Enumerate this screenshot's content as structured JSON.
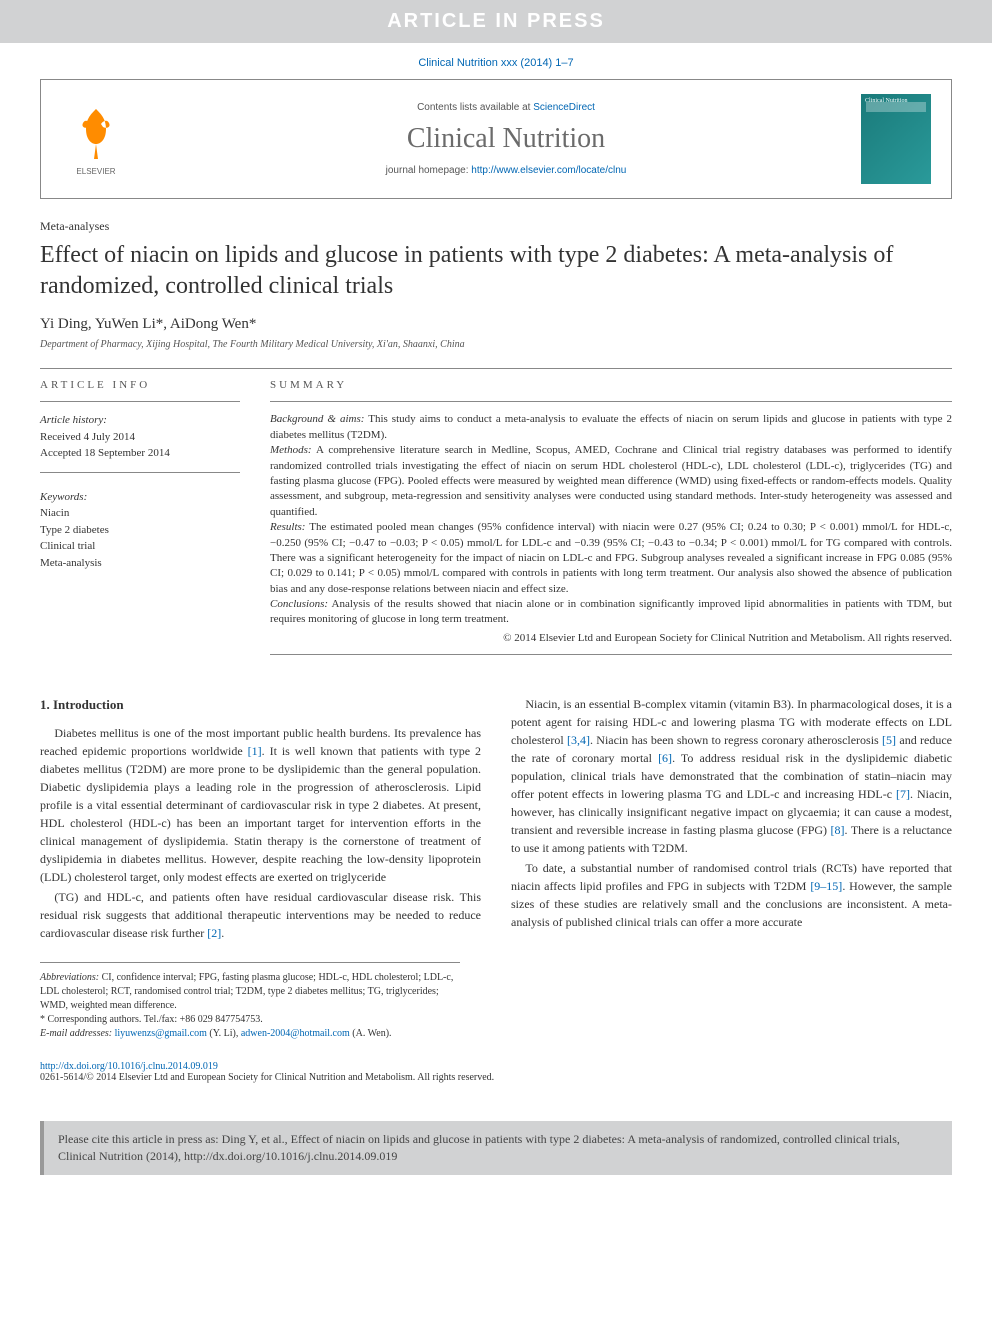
{
  "banner": "ARTICLE IN PRESS",
  "reference": "Clinical Nutrition xxx (2014) 1–7",
  "header": {
    "contents_prefix": "Contents lists available at ",
    "contents_link": "ScienceDirect",
    "journal": "Clinical Nutrition",
    "homepage_prefix": "journal homepage: ",
    "homepage_link": "http://www.elsevier.com/locate/clnu",
    "cover_label": "Clinical Nutrition"
  },
  "article": {
    "type": "Meta-analyses",
    "title": "Effect of niacin on lipids and glucose in patients with type 2 diabetes: A meta-analysis of randomized, controlled clinical trials",
    "authors_html": "Yi Ding, YuWen Li*, AiDong Wen*",
    "affiliation": "Department of Pharmacy, Xijing Hospital, The Fourth Military Medical University, Xi'an, Shaanxi, China"
  },
  "info": {
    "heading": "ARTICLE INFO",
    "history_label": "Article history:",
    "received": "Received 4 July 2014",
    "accepted": "Accepted 18 September 2014",
    "keywords_label": "Keywords:",
    "keywords": [
      "Niacin",
      "Type 2 diabetes",
      "Clinical trial",
      "Meta-analysis"
    ]
  },
  "summary": {
    "heading": "SUMMARY",
    "background_label": "Background & aims:",
    "background": "This study aims to conduct a meta-analysis to evaluate the effects of niacin on serum lipids and glucose in patients with type 2 diabetes mellitus (T2DM).",
    "methods_label": "Methods:",
    "methods": "A comprehensive literature search in Medline, Scopus, AMED, Cochrane and Clinical trial registry databases was performed to identify randomized controlled trials investigating the effect of niacin on serum HDL cholesterol (HDL-c), LDL cholesterol (LDL-c), triglycerides (TG) and fasting plasma glucose (FPG). Pooled effects were measured by weighted mean difference (WMD) using fixed-effects or random-effects models. Quality assessment, and subgroup, meta-regression and sensitivity analyses were conducted using standard methods. Inter-study heterogeneity was assessed and quantified.",
    "results_label": "Results:",
    "results": "The estimated pooled mean changes (95% confidence interval) with niacin were 0.27 (95% CI; 0.24 to 0.30; P < 0.001) mmol/L for HDL-c, −0.250 (95% CI; −0.47 to −0.03; P < 0.05) mmol/L for LDL-c and −0.39 (95% CI; −0.43 to −0.34; P < 0.001) mmol/L for TG compared with controls. There was a significant heterogeneity for the impact of niacin on LDL-c and FPG. Subgroup analyses revealed a significant increase in FPG 0.085 (95% CI; 0.029 to 0.141; P < 0.05) mmol/L compared with controls in patients with long term treatment. Our analysis also showed the absence of publication bias and any dose-response relations between niacin and effect size.",
    "conclusions_label": "Conclusions:",
    "conclusions": "Analysis of the results showed that niacin alone or in combination significantly improved lipid abnormalities in patients with TDM, but requires monitoring of glucose in long term treatment.",
    "copyright": "© 2014 Elsevier Ltd and European Society for Clinical Nutrition and Metabolism. All rights reserved."
  },
  "body": {
    "heading": "1. Introduction",
    "p1": "Diabetes mellitus is one of the most important public health burdens. Its prevalence has reached epidemic proportions worldwide [1]. It is well known that patients with type 2 diabetes mellitus (T2DM) are more prone to be dyslipidemic than the general population. Diabetic dyslipidemia plays a leading role in the progression of atherosclerosis. Lipid profile is a vital essential determinant of cardiovascular risk in type 2 diabetes. At present, HDL cholesterol (HDL-c) has been an important target for intervention efforts in the clinical management of dyslipidemia. Statin therapy is the cornerstone of treatment of dyslipidemia in diabetes mellitus. However, despite reaching the low-density lipoprotein (LDL) cholesterol target, only modest effects are exerted on triglyceride",
    "p2": "(TG) and HDL-c, and patients often have residual cardiovascular disease risk. This residual risk suggests that additional therapeutic interventions may be needed to reduce cardiovascular disease risk further [2].",
    "p3": "Niacin, is an essential B-complex vitamin (vitamin B3). In pharmacological doses, it is a potent agent for raising HDL-c and lowering plasma TG with moderate effects on LDL cholesterol [3,4]. Niacin has been shown to regress coronary atherosclerosis [5] and reduce the rate of coronary mortal [6]. To address residual risk in the dyslipidemic diabetic population, clinical trials have demonstrated that the combination of statin–niacin may offer potent effects in lowering plasma TG and LDL-c and increasing HDL-c [7]. Niacin, however, has clinically insignificant negative impact on glycaemia; it can cause a modest, transient and reversible increase in fasting plasma glucose (FPG) [8]. There is a reluctance to use it among patients with T2DM.",
    "p4": "To date, a substantial number of randomised control trials (RCTs) have reported that niacin affects lipid profiles and FPG in subjects with T2DM [9–15]. However, the sample sizes of these studies are relatively small and the conclusions are inconsistent. A meta-analysis of published clinical trials can offer a more accurate"
  },
  "footnotes": {
    "abbrev_label": "Abbreviations:",
    "abbrev": "CI, confidence interval; FPG, fasting plasma glucose; HDL-c, HDL cholesterol; LDL-c, LDL cholesterol; RCT, randomised control trial; T2DM, type 2 diabetes mellitus; TG, triglycerides; WMD, weighted mean difference.",
    "corr": "* Corresponding authors. Tel./fax: +86 029 847754753.",
    "email_label": "E-mail addresses:",
    "email1": "liyuwenzs@gmail.com",
    "email1_who": "(Y. Li),",
    "email2": "adwen-2004@hotmail.com",
    "email2_who": "(A. Wen)."
  },
  "doi": {
    "link": "http://dx.doi.org/10.1016/j.clnu.2014.09.019",
    "issn": "0261-5614/© 2014 Elsevier Ltd and European Society for Clinical Nutrition and Metabolism. All rights reserved."
  },
  "citebox": "Please cite this article in press as: Ding Y, et al., Effect of niacin on lipids and glucose in patients with type 2 diabetes: A meta-analysis of randomized, controlled clinical trials, Clinical Nutrition (2014), http://dx.doi.org/10.1016/j.clnu.2014.09.019"
}
